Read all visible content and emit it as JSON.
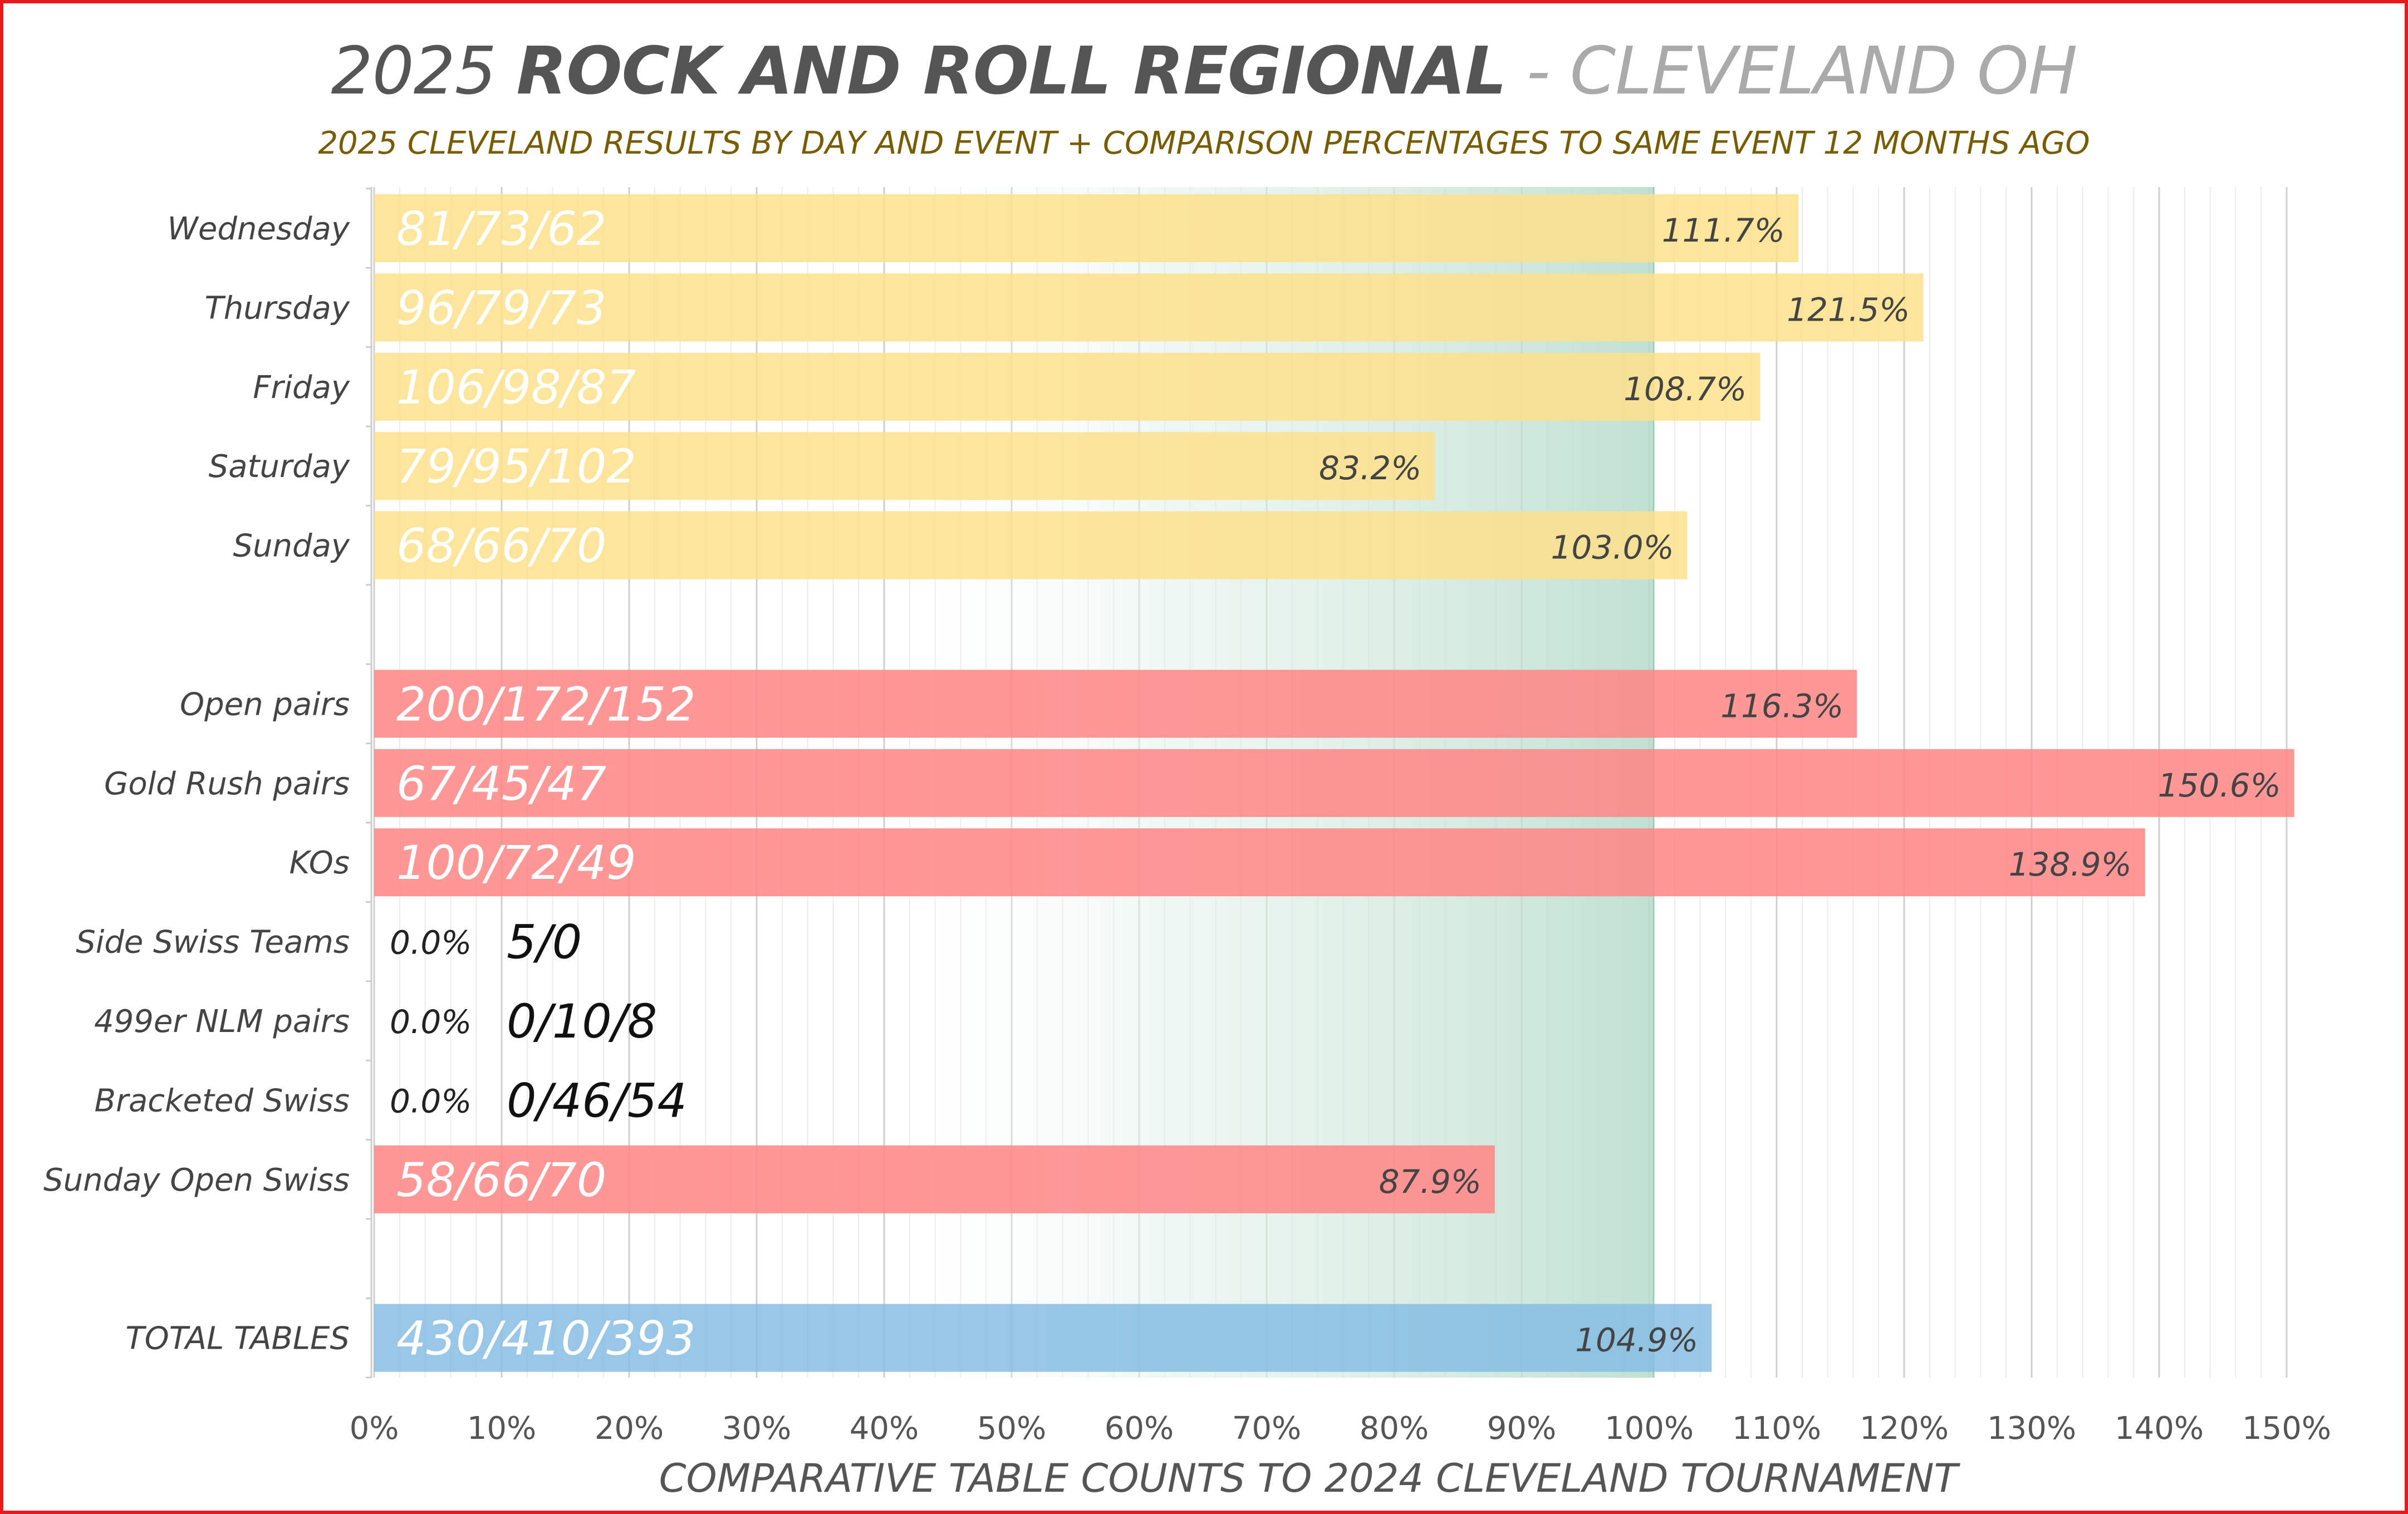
{
  "title": {
    "year": "2025",
    "main": "ROCK AND ROLL REGIONAL",
    "location": " - CLEVELAND OH"
  },
  "subtitle": "2025 CLEVELAND RESULTS BY DAY AND EVENT + COMPARISON PERCENTAGES TO SAME EVENT 12 MONTHS AGO",
  "colors": {
    "day": "#fde18b",
    "event": "#ff8585",
    "total": "#86bde3",
    "reference": "#bfe0d2",
    "frame": "#e8191c",
    "grid": "#d8d8d8"
  },
  "chart_data": {
    "type": "bar",
    "orientation": "horizontal",
    "xlabel": "COMPARATIVE TABLE COUNTS TO 2024 CLEVELAND TOURNAMENT",
    "xlim": [
      0,
      150
    ],
    "x_ticks": [
      "0%",
      "10%",
      "20%",
      "30%",
      "40%",
      "50%",
      "60%",
      "70%",
      "80%",
      "90%",
      "100%",
      "110%",
      "120%",
      "130%",
      "140%",
      "150%"
    ],
    "reference_line": 100,
    "grid": true,
    "groups": [
      {
        "name": "days",
        "color": "day",
        "rows": [
          {
            "category": "Wednesday",
            "value": 111.7,
            "label": "111.7%",
            "counts": "81/73/62"
          },
          {
            "category": "Thursday",
            "value": 121.5,
            "label": "121.5%",
            "counts": "96/79/73"
          },
          {
            "category": "Friday",
            "value": 108.7,
            "label": "108.7%",
            "counts": "106/98/87"
          },
          {
            "category": "Saturday",
            "value": 83.2,
            "label": "83.2%",
            "counts": "79/95/102"
          },
          {
            "category": "Sunday",
            "value": 103.0,
            "label": "103.0%",
            "counts": "68/66/70"
          }
        ]
      },
      {
        "name": "events",
        "color": "event",
        "rows": [
          {
            "category": "Open pairs",
            "value": 116.3,
            "label": "116.3%",
            "counts": "200/172/152"
          },
          {
            "category": "Gold Rush pairs",
            "value": 150.6,
            "label": "150.6%",
            "counts": "67/45/47"
          },
          {
            "category": "KOs",
            "value": 138.9,
            "label": "138.9%",
            "counts": "100/72/49"
          },
          {
            "category": "Side Swiss Teams",
            "value": 0.0,
            "label": "0.0%",
            "counts": "5/0"
          },
          {
            "category": "499er NLM pairs",
            "value": 0.0,
            "label": "0.0%",
            "counts": "0/10/8"
          },
          {
            "category": "Bracketed Swiss",
            "value": 0.0,
            "label": "0.0%",
            "counts": "0/46/54"
          },
          {
            "category": "Sunday Open Swiss",
            "value": 87.9,
            "label": "87.9%",
            "counts": "58/66/70"
          }
        ]
      },
      {
        "name": "total",
        "color": "total",
        "rows": [
          {
            "category": "TOTAL TABLES",
            "value": 104.9,
            "label": "104.9%",
            "counts": "430/410/393"
          }
        ]
      }
    ]
  }
}
